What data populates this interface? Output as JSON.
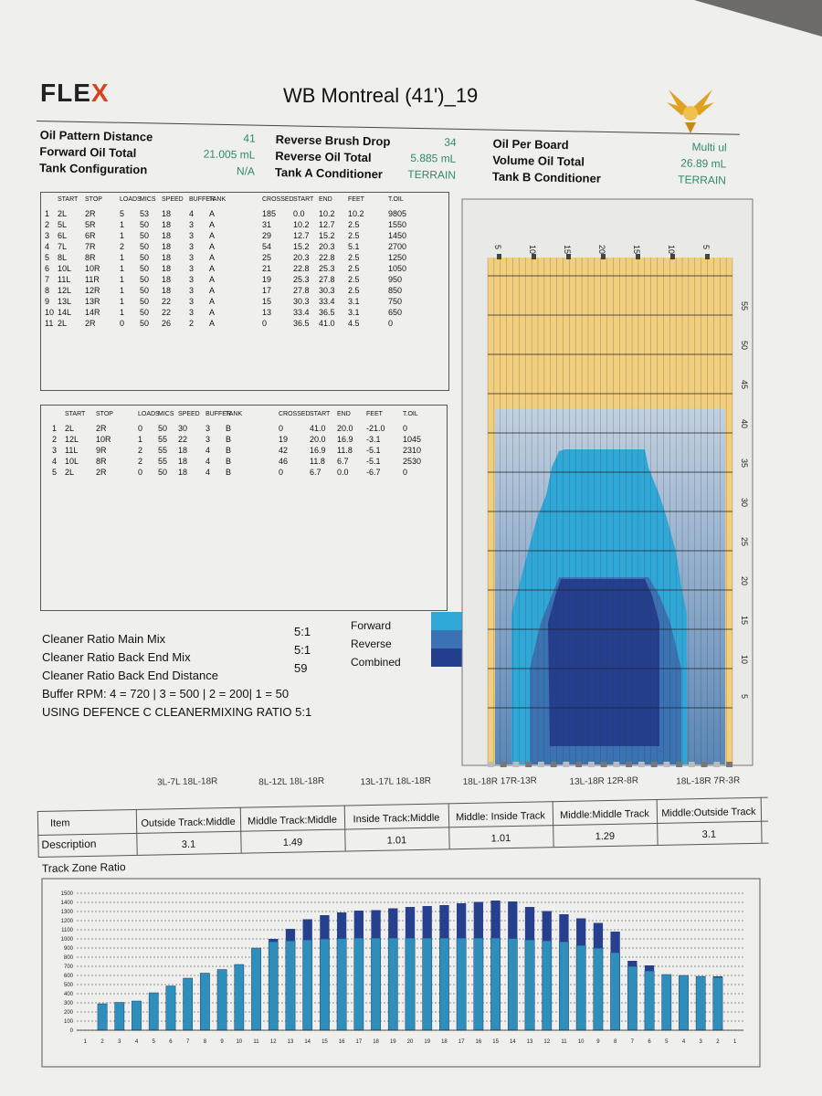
{
  "header": {
    "logo": {
      "brand": "FLE",
      "x": "X"
    },
    "title": "WB Montreal (41')_19"
  },
  "specs": [
    {
      "label": "Oil Pattern Distance",
      "value": "41"
    },
    {
      "label": "Forward Oil Total",
      "value": "21.005 mL"
    },
    {
      "label": "Tank Configuration",
      "value": "N/A"
    },
    {
      "label": "Reverse Brush Drop",
      "value": "34"
    },
    {
      "label": "Reverse Oil Total",
      "value": "5.885 mL"
    },
    {
      "label": "Tank A Conditioner",
      "value": "TERRAIN"
    },
    {
      "label": "Oil Per Board",
      "value": "Multi ul"
    },
    {
      "label": "Volume Oil Total",
      "value": "26.89 mL"
    },
    {
      "label": "Tank B Conditioner",
      "value": "TERRAIN"
    }
  ],
  "table_a": {
    "headers": [
      "START",
      "STOP",
      "LOADS",
      "MICS",
      "SPEED",
      "BUFFER",
      "TANK",
      "CROSSED",
      "START",
      "END",
      "FEET",
      "T.OIL"
    ],
    "rows": [
      [
        "1",
        "2L",
        "2R",
        "5",
        "53",
        "18",
        "4",
        "A",
        "185",
        "0.0",
        "10.2",
        "10.2",
        "9805"
      ],
      [
        "2",
        "5L",
        "5R",
        "1",
        "50",
        "18",
        "3",
        "A",
        "31",
        "10.2",
        "12.7",
        "2.5",
        "1550"
      ],
      [
        "3",
        "6L",
        "6R",
        "1",
        "50",
        "18",
        "3",
        "A",
        "29",
        "12.7",
        "15.2",
        "2.5",
        "1450"
      ],
      [
        "4",
        "7L",
        "7R",
        "2",
        "50",
        "18",
        "3",
        "A",
        "54",
        "15.2",
        "20.3",
        "5.1",
        "2700"
      ],
      [
        "5",
        "8L",
        "8R",
        "1",
        "50",
        "18",
        "3",
        "A",
        "25",
        "20.3",
        "22.8",
        "2.5",
        "1250"
      ],
      [
        "6",
        "10L",
        "10R",
        "1",
        "50",
        "18",
        "3",
        "A",
        "21",
        "22.8",
        "25.3",
        "2.5",
        "1050"
      ],
      [
        "7",
        "11L",
        "11R",
        "1",
        "50",
        "18",
        "3",
        "A",
        "19",
        "25.3",
        "27.8",
        "2.5",
        "950"
      ],
      [
        "8",
        "12L",
        "12R",
        "1",
        "50",
        "18",
        "3",
        "A",
        "17",
        "27.8",
        "30.3",
        "2.5",
        "850"
      ],
      [
        "9",
        "13L",
        "13R",
        "1",
        "50",
        "22",
        "3",
        "A",
        "15",
        "30.3",
        "33.4",
        "3.1",
        "750"
      ],
      [
        "10",
        "14L",
        "14R",
        "1",
        "50",
        "22",
        "3",
        "A",
        "13",
        "33.4",
        "36.5",
        "3.1",
        "650"
      ],
      [
        "11",
        "2L",
        "2R",
        "0",
        "50",
        "26",
        "2",
        "A",
        "0",
        "36.5",
        "41.0",
        "4.5",
        "0"
      ]
    ]
  },
  "table_b": {
    "headers": [
      "START",
      "STOP",
      "LOADS",
      "MICS",
      "SPEED",
      "BUFFER",
      "TANK",
      "CROSSED",
      "START",
      "END",
      "FEET",
      "T.OIL"
    ],
    "rows": [
      [
        "1",
        "2L",
        "2R",
        "0",
        "50",
        "30",
        "3",
        "B",
        "0",
        "41.0",
        "20.0",
        "-21.0",
        "0"
      ],
      [
        "2",
        "12L",
        "10R",
        "1",
        "55",
        "22",
        "3",
        "B",
        "19",
        "20.0",
        "16.9",
        "-3.1",
        "1045"
      ],
      [
        "3",
        "11L",
        "9R",
        "2",
        "55",
        "18",
        "4",
        "B",
        "42",
        "16.9",
        "11.8",
        "-5.1",
        "2310"
      ],
      [
        "4",
        "10L",
        "8R",
        "2",
        "55",
        "18",
        "4",
        "B",
        "46",
        "11.8",
        "6.7",
        "-5.1",
        "2530"
      ],
      [
        "5",
        "2L",
        "2R",
        "0",
        "50",
        "18",
        "4",
        "B",
        "0",
        "6.7",
        "0.0",
        "-6.7",
        "0"
      ]
    ]
  },
  "cleaner": {
    "main_mix_label": "Cleaner Ratio Main Mix",
    "main_mix_value": "5:1",
    "back_end_mix_label": "Cleaner Ratio Back End Mix",
    "back_end_mix_value": "5:1",
    "back_end_distance_label": "Cleaner Ratio Back End Distance",
    "back_end_distance_value": "59",
    "buffer_rpm": "Buffer RPM: 4 = 720 | 3 = 500 | 2 = 200| 1 = 50",
    "using": "USING DEFENCE C CLEANERMIXING RATIO 5:1"
  },
  "legend": [
    {
      "label": "Forward",
      "color": "#2fa8d8"
    },
    {
      "label": "Reverse",
      "color": "#3a72b4"
    },
    {
      "label": "Combined",
      "color": "#233f8e"
    }
  ],
  "pattern_chart": {
    "left_labels": [
      "55",
      "50",
      "45",
      "40",
      "35",
      "30",
      "25",
      "20",
      "15",
      "10",
      "5"
    ],
    "top_labels": [
      "5",
      "10",
      "15",
      "20",
      "15",
      "10",
      "5"
    ]
  },
  "track_zone": {
    "item_label": "Item",
    "description_label": "Description",
    "ratio_label": "Track Zone Ratio",
    "columns": [
      {
        "boards": "3L-7L 18L-18R",
        "description": "Outside Track:Middle",
        "ratio": "3.1"
      },
      {
        "boards": "8L-12L 18L-18R",
        "description": "Middle Track:Middle",
        "ratio": "1.49"
      },
      {
        "boards": "13L-17L 18L-18R",
        "description": "Inside Track:Middle",
        "ratio": "1.01"
      },
      {
        "boards": "18L-18R 17R-13R",
        "description": "Middle: Inside Track",
        "ratio": "1.01"
      },
      {
        "boards": "13L-18R 12R-8R",
        "description": "Middle:Middle Track",
        "ratio": "1.29"
      },
      {
        "boards": "18L-18R 7R-3R",
        "description": "Middle:Outside Track",
        "ratio": "3.1"
      }
    ]
  },
  "chart_data": {
    "type": "bar",
    "ylim": [
      0,
      1500
    ],
    "y_ticks": [
      0,
      100,
      200,
      300,
      400,
      500,
      600,
      700,
      800,
      900,
      1000,
      1100,
      1200,
      1300,
      1400,
      1500
    ],
    "categories": [
      "1",
      "2",
      "3",
      "4",
      "5",
      "6",
      "7",
      "8",
      "9",
      "10",
      "11",
      "12",
      "13",
      "14",
      "15",
      "16",
      "17",
      "18",
      "19",
      "20",
      "19",
      "18",
      "17",
      "16",
      "15",
      "14",
      "13",
      "12",
      "11",
      "10",
      "9",
      "8",
      "7",
      "6",
      "5",
      "4",
      "3",
      "2",
      "1"
    ],
    "series": [
      {
        "values": [
          0,
          290,
          305,
          320,
          410,
          485,
          570,
          625,
          665,
          720,
          900,
          970,
          980,
          990,
          1000,
          1005,
          1010,
          1010,
          1010,
          1010,
          1010,
          1010,
          1010,
          1010,
          1010,
          1005,
          990,
          980,
          970,
          930,
          900,
          850,
          700,
          650,
          610,
          600,
          590,
          580,
          0
        ],
        "color": "#2e8fbd"
      },
      {
        "values": [
          0,
          0,
          0,
          0,
          0,
          0,
          0,
          0,
          0,
          0,
          0,
          30,
          130,
          225,
          260,
          285,
          300,
          305,
          325,
          340,
          350,
          360,
          380,
          395,
          410,
          405,
          360,
          325,
          300,
          295,
          275,
          230,
          60,
          60,
          0,
          0,
          0,
          10,
          0
        ],
        "color": "#263f8f"
      }
    ]
  }
}
